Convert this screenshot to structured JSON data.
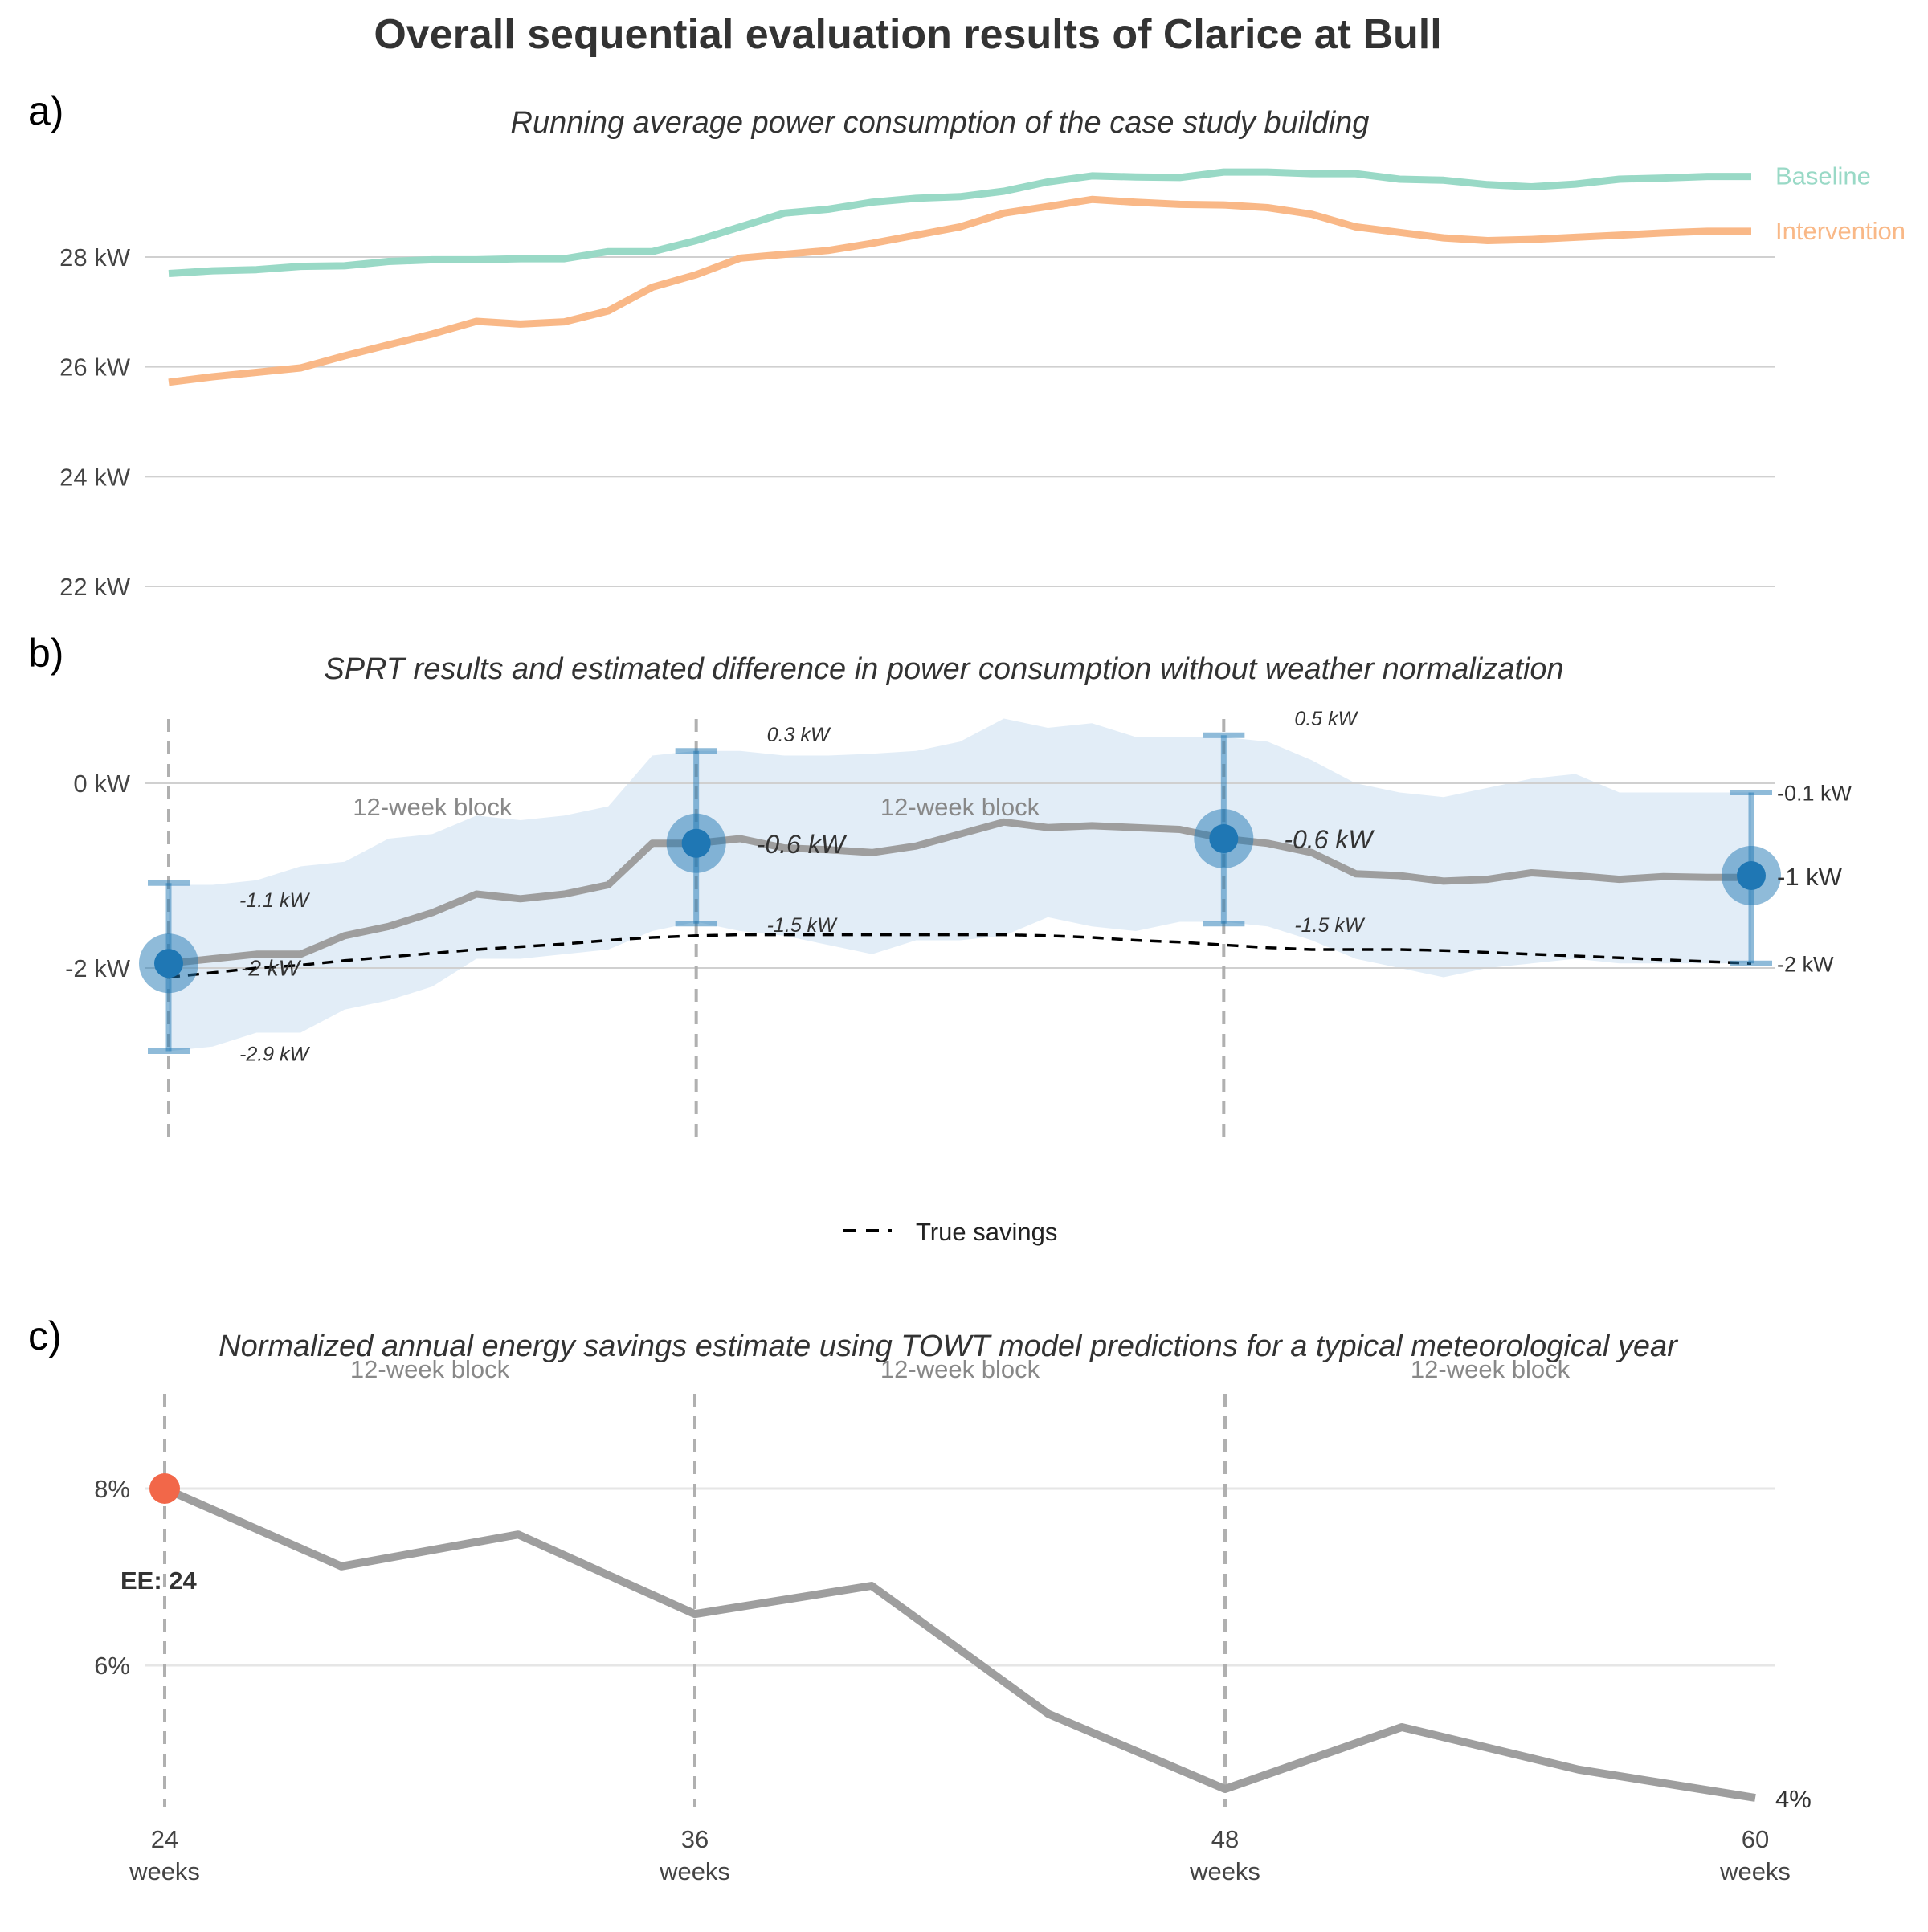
{
  "title": "Overall sequential evaluation results of Clarice at Bull",
  "colors": {
    "baseline": "#99d9c6",
    "intervention": "#f9b887",
    "difference": "#9e9e9e",
    "band": "#d5e6f4",
    "marker": "#1f77b4",
    "ee_marker": "#f26749",
    "true_savings": "#000000",
    "grid": "#d0d0d0",
    "vline": "#b0b0b0"
  },
  "chart_data": [
    {
      "panel": "a)",
      "type": "line",
      "subtitle": "Running average power consumption of the case study building",
      "x_range": [
        24,
        60
      ],
      "ylim": [
        22,
        29.9
      ],
      "y_ticks": [
        22,
        24,
        26,
        28
      ],
      "y_tick_labels": [
        "22 kW",
        "24 kW",
        "26 kW",
        "28 kW"
      ],
      "x": [
        24,
        25,
        26,
        27,
        28,
        29,
        30,
        31,
        32,
        33,
        34,
        35,
        36,
        37,
        38,
        39,
        40,
        41,
        42,
        43,
        44,
        45,
        46,
        47,
        48,
        49,
        50,
        51,
        52,
        53,
        54,
        55,
        56,
        57,
        58,
        59,
        60
      ],
      "series": [
        {
          "name": "Baseline",
          "color_key": "baseline",
          "values": [
            27.7,
            27.75,
            27.77,
            27.83,
            27.84,
            27.92,
            27.95,
            27.95,
            27.97,
            27.97,
            28.1,
            28.1,
            28.3,
            28.55,
            28.8,
            28.87,
            29.0,
            29.07,
            29.1,
            29.2,
            29.37,
            29.48,
            29.46,
            29.45,
            29.55,
            29.55,
            29.52,
            29.52,
            29.42,
            29.4,
            29.32,
            29.28,
            29.33,
            29.42,
            29.44,
            29.47,
            29.47
          ]
        },
        {
          "name": "Intervention",
          "color_key": "intervention",
          "values": [
            25.72,
            25.82,
            25.9,
            25.98,
            26.2,
            26.4,
            26.6,
            26.83,
            26.78,
            26.82,
            27.02,
            27.45,
            27.68,
            27.98,
            28.05,
            28.12,
            28.25,
            28.4,
            28.55,
            28.8,
            28.92,
            29.05,
            29.0,
            28.96,
            28.95,
            28.9,
            28.78,
            28.55,
            28.45,
            28.35,
            28.3,
            28.32,
            28.36,
            28.4,
            28.44,
            28.47,
            28.47
          ]
        }
      ]
    },
    {
      "panel": "b)",
      "type": "line",
      "subtitle": "SPRT results and estimated difference in power consumption without weather normalization",
      "x_range": [
        24,
        60
      ],
      "ylim": [
        -3.9,
        0.8
      ],
      "y_ticks": [
        -2,
        0
      ],
      "y_tick_labels": [
        "-2 kW",
        "0 kW"
      ],
      "x": [
        24,
        25,
        26,
        27,
        28,
        29,
        30,
        31,
        32,
        33,
        34,
        35,
        36,
        37,
        38,
        39,
        40,
        41,
        42,
        43,
        44,
        45,
        46,
        47,
        48,
        49,
        50,
        51,
        52,
        53,
        54,
        55,
        56,
        57,
        58,
        59,
        60
      ],
      "series": [
        {
          "name": "",
          "color_key": "difference",
          "values": [
            -1.95,
            -1.9,
            -1.85,
            -1.85,
            -1.65,
            -1.55,
            -1.4,
            -1.2,
            -1.25,
            -1.2,
            -1.1,
            -0.65,
            -0.65,
            -0.6,
            -0.7,
            -0.72,
            -0.75,
            -0.68,
            -0.55,
            -0.42,
            -0.48,
            -0.46,
            -0.48,
            -0.5,
            -0.6,
            -0.65,
            -0.75,
            -0.98,
            -1.0,
            -1.06,
            -1.04,
            -0.97,
            -1.0,
            -1.04,
            -1.01,
            -1.02,
            -1.02
          ]
        },
        {
          "name": "True savings",
          "color_key": "true_savings",
          "dashed": true,
          "values": [
            -2.1,
            -2.05,
            -2.0,
            -1.97,
            -1.92,
            -1.88,
            -1.84,
            -1.8,
            -1.77,
            -1.74,
            -1.7,
            -1.67,
            -1.65,
            -1.64,
            -1.64,
            -1.64,
            -1.64,
            -1.64,
            -1.64,
            -1.64,
            -1.65,
            -1.67,
            -1.7,
            -1.72,
            -1.75,
            -1.78,
            -1.8,
            -1.8,
            -1.8,
            -1.81,
            -1.83,
            -1.85,
            -1.87,
            -1.89,
            -1.91,
            -1.93,
            -1.95
          ]
        }
      ],
      "band": {
        "upper": [
          -1.1,
          -1.1,
          -1.05,
          -0.9,
          -0.85,
          -0.6,
          -0.55,
          -0.35,
          -0.4,
          -0.35,
          -0.25,
          0.3,
          0.35,
          0.35,
          0.3,
          0.3,
          0.32,
          0.35,
          0.45,
          0.7,
          0.6,
          0.65,
          0.5,
          0.5,
          0.5,
          0.45,
          0.25,
          0.0,
          -0.1,
          -0.15,
          -0.05,
          0.05,
          0.1,
          -0.1,
          -0.1,
          -0.1,
          -0.1
        ],
        "lower": [
          -2.9,
          -2.85,
          -2.7,
          -2.7,
          -2.45,
          -2.35,
          -2.2,
          -1.9,
          -1.9,
          -1.85,
          -1.8,
          -1.6,
          -1.5,
          -1.6,
          -1.65,
          -1.75,
          -1.85,
          -1.7,
          -1.7,
          -1.65,
          -1.45,
          -1.55,
          -1.6,
          -1.5,
          -1.5,
          -1.55,
          -1.7,
          -1.9,
          -2.0,
          -2.1,
          -2.0,
          -1.95,
          -1.9,
          -1.95,
          -1.95,
          -1.95,
          -1.95
        ]
      },
      "block_label": "12-week block",
      "evaluations": [
        {
          "x": 24,
          "estimate": -1.95,
          "upper": -1.08,
          "lower": -2.9,
          "estimate_label": "-2 kW",
          "upper_label": "-1.1 kW",
          "lower_label": "-2.9 kW"
        },
        {
          "x": 36,
          "estimate": -0.65,
          "upper": 0.35,
          "lower": -1.52,
          "estimate_label": "-0.6 kW",
          "upper_label": "0.3 kW",
          "lower_label": "-1.5 kW"
        },
        {
          "x": 48,
          "estimate": -0.6,
          "upper": 0.52,
          "lower": -1.52,
          "estimate_label": "-0.6 kW",
          "upper_label": "0.5 kW",
          "lower_label": "-1.5 kW"
        },
        {
          "x": 60,
          "estimate": -1.0,
          "upper": -0.1,
          "lower": -1.95,
          "estimate_label": "-1 kW",
          "upper_label": "-0.1 kW",
          "lower_label": "-2 kW"
        }
      ],
      "legend": {
        "label": "True savings",
        "placement": "bottom"
      }
    },
    {
      "panel": "c)",
      "type": "line",
      "subtitle": "Normalized annual energy savings estimate using TOWT model predictions for a typical meteorological year",
      "x_range": [
        24,
        60
      ],
      "ylim": [
        4.3,
        8.8
      ],
      "y_ticks": [
        6,
        8
      ],
      "y_tick_labels": [
        "6%",
        "8%"
      ],
      "x": [
        24,
        28,
        32,
        36,
        40,
        44,
        48,
        52,
        56,
        60
      ],
      "series": [
        {
          "name": "",
          "color_key": "difference",
          "values": [
            8.0,
            7.12,
            7.48,
            6.58,
            6.9,
            5.45,
            4.6,
            5.3,
            4.82,
            4.5
          ]
        }
      ],
      "end_label": "4%",
      "ee_label": "EE: 24",
      "ee_point": {
        "x": 24,
        "y": 8.0
      },
      "block_label": "12-week block",
      "x_ticks": [
        24,
        36,
        48,
        60
      ],
      "x_tick_labels": [
        [
          "24",
          "weeks"
        ],
        [
          "36",
          "weeks"
        ],
        [
          "48",
          "weeks"
        ],
        [
          "60",
          "weeks"
        ]
      ]
    }
  ]
}
